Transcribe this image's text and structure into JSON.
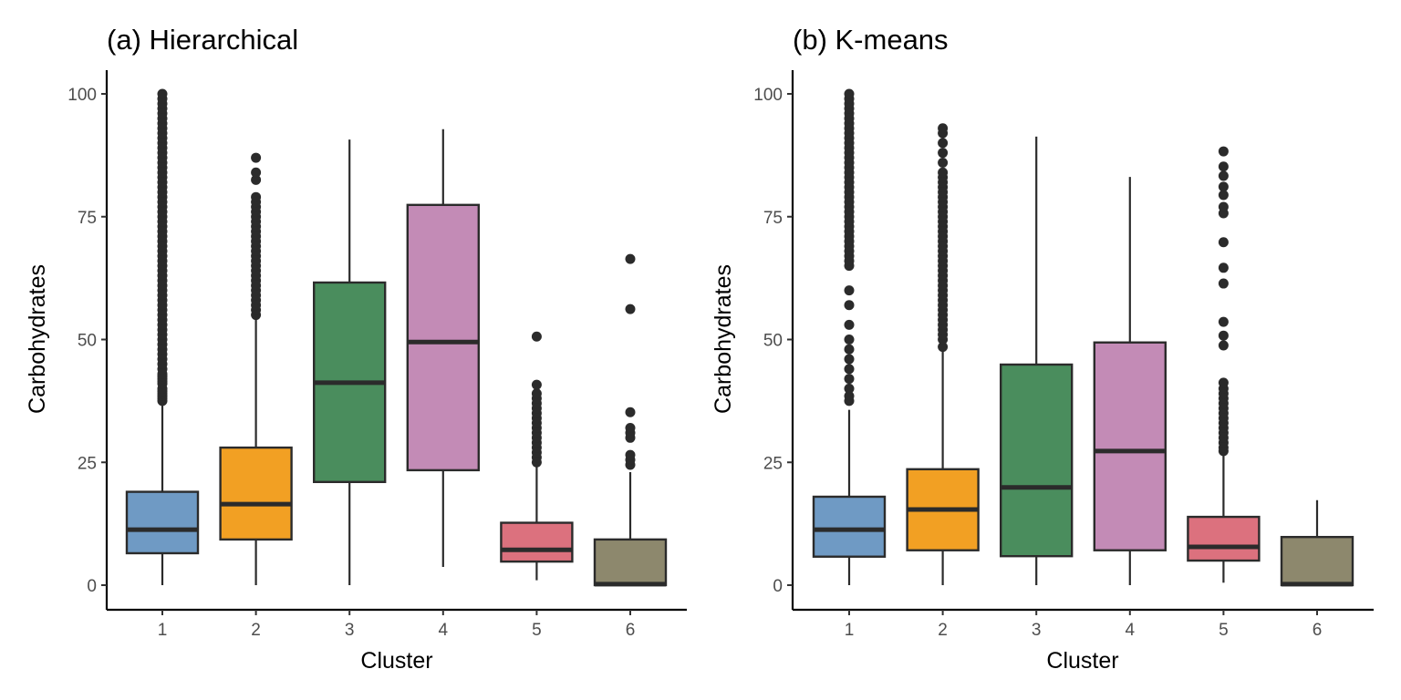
{
  "chart_data": [
    {
      "type": "boxplot",
      "title": "(a) Hierarchical",
      "xlabel": "Cluster",
      "ylabel": "Carbohydrates",
      "ylim": [
        -5,
        105
      ],
      "yticks": [
        0,
        25,
        50,
        75,
        100
      ],
      "ytick_labels": [
        "0",
        "25",
        "50",
        "75",
        "100"
      ],
      "categories": [
        "1",
        "2",
        "3",
        "4",
        "5",
        "6"
      ],
      "grid": false,
      "legend": "none",
      "boxes": [
        {
          "cluster": "1",
          "color": "#6F9AC4",
          "whisker_low": 0,
          "q1": 6.5,
          "median": 11.3,
          "q3": 19.0,
          "whisker_high": 36.7,
          "outliers": [
            37.5,
            38,
            38.5,
            39,
            39.5,
            40,
            41,
            41.5,
            42,
            42.5,
            43,
            44,
            45,
            46,
            47,
            48,
            49,
            50,
            51,
            52,
            53,
            54,
            55,
            56,
            57,
            58,
            59,
            60,
            61,
            62,
            63,
            64,
            65,
            66,
            67,
            68,
            69,
            70,
            71,
            72,
            73,
            74,
            75,
            76,
            77,
            78,
            79,
            80,
            81,
            82,
            83,
            84,
            85,
            86,
            87,
            88,
            89,
            90,
            91,
            92,
            93,
            94,
            95,
            96,
            97,
            98,
            99,
            100
          ]
        },
        {
          "cluster": "2",
          "color": "#F2A023",
          "whisker_low": 0,
          "q1": 9.3,
          "median": 16.5,
          "q3": 28.0,
          "whisker_high": 54.4,
          "outliers": [
            55,
            56,
            57,
            58,
            59,
            60,
            61,
            62,
            63,
            64,
            65,
            66,
            67,
            68,
            69,
            70,
            71,
            72,
            73,
            74,
            75,
            76,
            77,
            78,
            79,
            82.5,
            84,
            87
          ]
        },
        {
          "cluster": "3",
          "color": "#4A8D5D",
          "whisker_low": 0,
          "q1": 21.0,
          "median": 41.2,
          "q3": 61.6,
          "whisker_high": 90.7,
          "outliers": []
        },
        {
          "cluster": "4",
          "color": "#C38BB6",
          "whisker_low": 3.7,
          "q1": 23.4,
          "median": 49.5,
          "q3": 77.4,
          "whisker_high": 92.8,
          "outliers": []
        },
        {
          "cluster": "5",
          "color": "#DC717E",
          "whisker_low": 1.0,
          "q1": 4.8,
          "median": 7.2,
          "q3": 12.7,
          "whisker_high": 24.5,
          "outliers": [
            25,
            26,
            27,
            28,
            29,
            30,
            31,
            32,
            33,
            34,
            35,
            36,
            37,
            38,
            39,
            40.8,
            50.6
          ]
        },
        {
          "cluster": "6",
          "color": "#8D886D",
          "whisker_low": 0,
          "q1": 0,
          "median": 0.2,
          "q3": 9.3,
          "whisker_high": 23.0,
          "outliers": [
            24.5,
            25.5,
            26.5,
            30,
            31,
            32,
            35.2,
            56.2,
            66.4
          ]
        }
      ]
    },
    {
      "type": "boxplot",
      "title": "(b) K-means",
      "xlabel": "Cluster",
      "ylabel": "Carbohydrates",
      "ylim": [
        -5,
        105
      ],
      "yticks": [
        0,
        25,
        50,
        75,
        100
      ],
      "ytick_labels": [
        "0",
        "25",
        "50",
        "75",
        "100"
      ],
      "categories": [
        "1",
        "2",
        "3",
        "4",
        "5",
        "6"
      ],
      "grid": false,
      "legend": "none",
      "boxes": [
        {
          "cluster": "1",
          "color": "#6F9AC4",
          "whisker_low": 0,
          "q1": 5.8,
          "median": 11.3,
          "q3": 18.0,
          "whisker_high": 35.7,
          "outliers": [
            37.5,
            38.5,
            40,
            42,
            44,
            46,
            48,
            50,
            53,
            57,
            60,
            65,
            66,
            67,
            68,
            69,
            70,
            71,
            72,
            73,
            74,
            75,
            76,
            77,
            78,
            79,
            80,
            81,
            82,
            83,
            84,
            85,
            86,
            87,
            88,
            89,
            90,
            91,
            92,
            93,
            94,
            95,
            96,
            97,
            98,
            99,
            100
          ]
        },
        {
          "cluster": "2",
          "color": "#F2A023",
          "whisker_low": 0,
          "q1": 7.1,
          "median": 15.4,
          "q3": 23.6,
          "whisker_high": 48.0,
          "outliers": [
            48.5,
            50,
            51,
            52,
            53,
            54,
            55,
            56,
            57,
            58,
            59,
            60,
            61,
            62,
            63,
            64,
            65,
            66,
            67,
            68,
            69,
            70,
            71,
            72,
            73,
            74,
            75,
            76,
            77,
            78,
            79,
            80,
            81,
            82,
            83,
            84,
            86,
            88,
            90,
            92,
            93
          ]
        },
        {
          "cluster": "3",
          "color": "#4A8D5D",
          "whisker_low": 0,
          "q1": 5.9,
          "median": 19.9,
          "q3": 44.9,
          "whisker_high": 91.3,
          "outliers": []
        },
        {
          "cluster": "4",
          "color": "#C38BB6",
          "whisker_low": 0,
          "q1": 7.1,
          "median": 27.3,
          "q3": 49.4,
          "whisker_high": 83.1,
          "outliers": []
        },
        {
          "cluster": "5",
          "color": "#DC717E",
          "whisker_low": 0.5,
          "q1": 5.0,
          "median": 7.8,
          "q3": 13.9,
          "whisker_high": 26.5,
          "outliers": [
            27.3,
            28,
            29,
            30,
            31,
            32,
            33,
            34,
            35,
            36,
            37,
            38,
            39,
            40,
            41.2,
            48.8,
            50.8,
            53.6,
            61.4,
            64.6,
            69.8,
            75.7,
            77.0,
            79.4,
            81.1,
            83.3,
            85.2,
            88.3
          ]
        },
        {
          "cluster": "6",
          "color": "#8D886D",
          "whisker_low": 0,
          "q1": 0,
          "median": 0.2,
          "q3": 9.8,
          "whisker_high": 17.3,
          "outliers": []
        }
      ]
    }
  ]
}
